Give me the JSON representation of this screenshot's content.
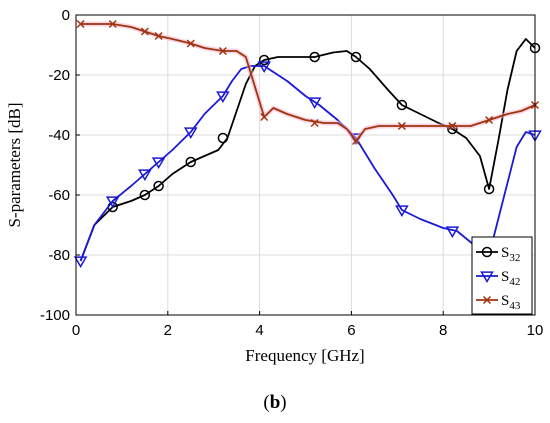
{
  "caption": {
    "open": "(",
    "label": "b",
    "close": ")"
  },
  "chart_data": {
    "type": "line",
    "title": "",
    "xlabel": "Frequency [GHz]",
    "ylabel": "S-parameters [dB]",
    "xlim": [
      0,
      10
    ],
    "ylim": [
      -100,
      0
    ],
    "xticks": [
      0,
      2,
      4,
      6,
      8,
      10
    ],
    "yticks": [
      0,
      -20,
      -40,
      -60,
      -80,
      -100
    ],
    "grid": true,
    "legend_position": "bottom-right",
    "series": [
      {
        "name": "S32",
        "name_main": "S",
        "name_sub": "32",
        "color": "#000000",
        "marker": "circle",
        "x": [
          0.1,
          0.4,
          0.8,
          1.2,
          1.5,
          1.8,
          2.1,
          2.5,
          2.8,
          3.1,
          3.3,
          3.5,
          3.7,
          3.9,
          4.1,
          4.4,
          4.8,
          5.2,
          5.6,
          5.9,
          6.1,
          6.4,
          6.8,
          7.1,
          7.5,
          7.9,
          8.2,
          8.5,
          8.8,
          9.0,
          9.2,
          9.4,
          9.6,
          9.8,
          10.0
        ],
        "y": [
          -82,
          -70,
          -64,
          -62,
          -60,
          -57,
          -53,
          -49,
          -47,
          -45,
          -41,
          -32,
          -23,
          -17,
          -15,
          -14,
          -14,
          -14,
          -12.5,
          -12,
          -14,
          -18,
          -25,
          -30,
          -33,
          -36,
          -38,
          -41,
          -47,
          -58,
          -42,
          -25,
          -12,
          -8,
          -11
        ],
        "marker_x": [
          0.8,
          1.5,
          1.8,
          2.5,
          3.2,
          4.1,
          5.2,
          6.1,
          7.1,
          8.2,
          9.0,
          10.0
        ],
        "marker_y": [
          -64,
          -60,
          -57,
          -49,
          -41,
          -15,
          -14,
          -14,
          -30,
          -38,
          -58,
          -11
        ]
      },
      {
        "name": "S42",
        "name_main": "S",
        "name_sub": "42",
        "color": "#1a1ad6",
        "marker": "triangle-down",
        "x": [
          0.1,
          0.4,
          0.8,
          1.2,
          1.5,
          1.8,
          2.1,
          2.5,
          2.8,
          3.0,
          3.2,
          3.4,
          3.6,
          3.8,
          4.0,
          4.1,
          4.3,
          4.6,
          5.0,
          5.3,
          5.7,
          6.1,
          6.5,
          6.9,
          7.1,
          7.5,
          8.0,
          8.3,
          8.7,
          9.0,
          9.3,
          9.6,
          9.8,
          10.0
        ],
        "y": [
          -82,
          -70,
          -62,
          -57,
          -53,
          -49,
          -45,
          -39,
          -33,
          -30,
          -27,
          -22,
          -18,
          -17,
          -17,
          -17,
          -19,
          -22,
          -27,
          -30,
          -35,
          -41,
          -51,
          -60,
          -65,
          -68,
          -71,
          -72,
          -77,
          -80,
          -62,
          -44,
          -39,
          -40
        ],
        "marker_x": [
          0.1,
          0.8,
          1.5,
          1.8,
          2.5,
          3.2,
          4.1,
          5.2,
          6.1,
          7.1,
          8.2,
          10.0
        ],
        "marker_y": [
          -82,
          -62,
          -53,
          -49,
          -39,
          -27,
          -17,
          -29,
          -41,
          -65,
          -72,
          -40
        ]
      },
      {
        "name": "S43",
        "name_main": "S",
        "name_sub": "43",
        "color": "#a0340f",
        "marker": "x",
        "x": [
          0.1,
          0.4,
          0.8,
          1.2,
          1.5,
          1.8,
          2.1,
          2.5,
          2.8,
          3.0,
          3.2,
          3.5,
          3.7,
          3.9,
          4.1,
          4.3,
          4.6,
          5.0,
          5.4,
          5.7,
          5.9,
          6.1,
          6.3,
          6.6,
          7.1,
          7.5,
          8.0,
          8.2,
          8.6,
          9.0,
          9.4,
          9.7,
          10.0
        ],
        "y": [
          -3,
          -3,
          -3,
          -4,
          -5.5,
          -7,
          -8,
          -9.5,
          -11,
          -11.5,
          -12,
          -12,
          -14,
          -24,
          -34,
          -31,
          -33,
          -35,
          -36,
          -36,
          -38,
          -42,
          -38,
          -37,
          -37,
          -37,
          -37,
          -37,
          -37,
          -35,
          -33,
          -32,
          -30
        ],
        "marker_x": [
          0.1,
          0.8,
          1.5,
          1.8,
          2.5,
          3.2,
          4.1,
          5.2,
          6.1,
          7.1,
          8.2,
          9.0,
          10.0
        ],
        "marker_y": [
          -3,
          -3,
          -5.5,
          -7,
          -9.5,
          -12,
          -34,
          -36,
          -42,
          -37,
          -37,
          -35,
          -30
        ]
      }
    ]
  }
}
